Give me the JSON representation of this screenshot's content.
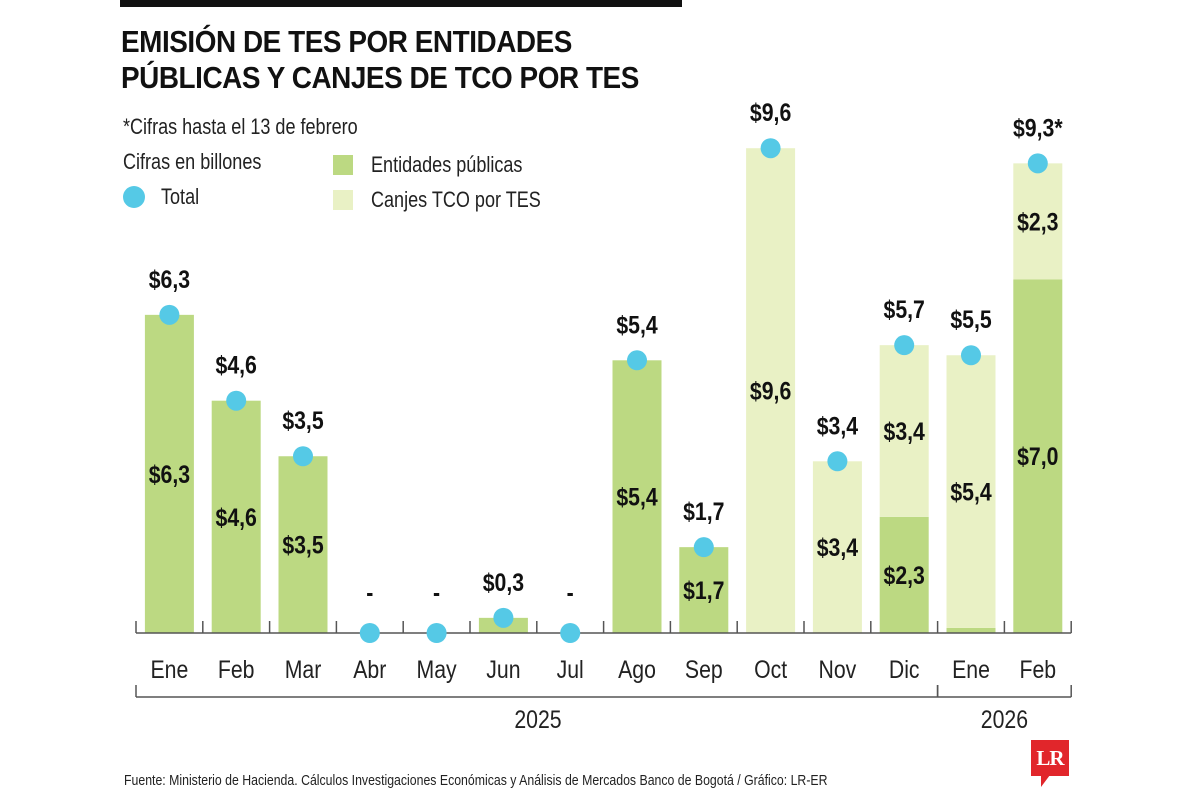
{
  "header": {
    "title_lines": [
      "EMISIÓN DE TES POR ENTIDADES",
      "PÚBLICAS Y CANJES DE TCO POR TES"
    ],
    "note": "*Cifras hasta el 13 de febrero",
    "units": "Cifras en billones"
  },
  "legend": {
    "total": {
      "label": "Total",
      "color": "#55c9e6"
    },
    "entidades": {
      "label": "Entidades públicas",
      "color": "#bcd982"
    },
    "canjes": {
      "label": "Canjes TCO por TES",
      "color": "#e9f1c5"
    }
  },
  "footer": {
    "source": "Fuente: Ministerio de Hacienda. Cálculos Investigaciones Económicas y Análisis de Mercados Banco de Bogotá / Gráfico: LR-ER",
    "logo": "LR"
  },
  "chart_data": {
    "type": "bar",
    "stacked": true,
    "title": "EMISIÓN DE TES POR ENTIDADES PÚBLICAS Y CANJES DE TCO POR TES",
    "subtitle": "*Cifras hasta el 13 de febrero",
    "ylabel": "Cifras en billones",
    "xlabel": "",
    "ylim": [
      0,
      10
    ],
    "grid": false,
    "legend_position": "top-left",
    "categories": [
      "Ene",
      "Feb",
      "Mar",
      "Abr",
      "May",
      "Jun",
      "Jul",
      "Ago",
      "Sep",
      "Oct",
      "Nov",
      "Dic",
      "Ene",
      "Feb"
    ],
    "year_groups": [
      {
        "label": "2025",
        "start": 0,
        "end": 11
      },
      {
        "label": "2026",
        "start": 12,
        "end": 13
      }
    ],
    "series": [
      {
        "name": "Entidades públicas",
        "color": "#bcd982",
        "values": [
          6.3,
          4.6,
          3.5,
          0,
          0,
          0.3,
          0,
          5.4,
          1.7,
          0,
          0,
          2.3,
          0.1,
          7.0
        ]
      },
      {
        "name": "Canjes TCO por TES",
        "color": "#e9f1c5",
        "values": [
          0,
          0,
          0,
          0,
          0,
          0,
          0,
          0,
          0,
          9.6,
          3.4,
          3.4,
          5.4,
          2.3
        ]
      }
    ],
    "totals": [
      6.3,
      4.6,
      3.5,
      0,
      0,
      0.3,
      0,
      5.4,
      1.7,
      9.6,
      3.4,
      5.7,
      5.5,
      9.3
    ],
    "total_labels": [
      "$6,3",
      "$4,6",
      "$3,5",
      "-",
      "-",
      "$0,3",
      "-",
      "$5,4",
      "$1,7",
      "$9,6",
      "$3,4",
      "$5,7",
      "$5,5",
      "$9,3*"
    ],
    "segment_labels": [
      {
        "index": 0,
        "series": "Entidades públicas",
        "label": "$6,3"
      },
      {
        "index": 1,
        "series": "Entidades públicas",
        "label": "$4,6"
      },
      {
        "index": 2,
        "series": "Entidades públicas",
        "label": "$3,5"
      },
      {
        "index": 7,
        "series": "Entidades públicas",
        "label": "$5,4"
      },
      {
        "index": 8,
        "series": "Entidades públicas",
        "label": "$1,7"
      },
      {
        "index": 9,
        "series": "Canjes TCO por TES",
        "label": "$9,6"
      },
      {
        "index": 10,
        "series": "Canjes TCO por TES",
        "label": "$3,4"
      },
      {
        "index": 11,
        "series": "Canjes TCO por TES",
        "label": "$3,4"
      },
      {
        "index": 11,
        "series": "Entidades públicas",
        "label": "$2,3"
      },
      {
        "index": 12,
        "series": "Canjes TCO por TES",
        "label": "$5,4"
      },
      {
        "index": 13,
        "series": "Canjes TCO por TES",
        "label": "$2,3"
      },
      {
        "index": 13,
        "series": "Entidades públicas",
        "label": "$7,0"
      }
    ]
  }
}
